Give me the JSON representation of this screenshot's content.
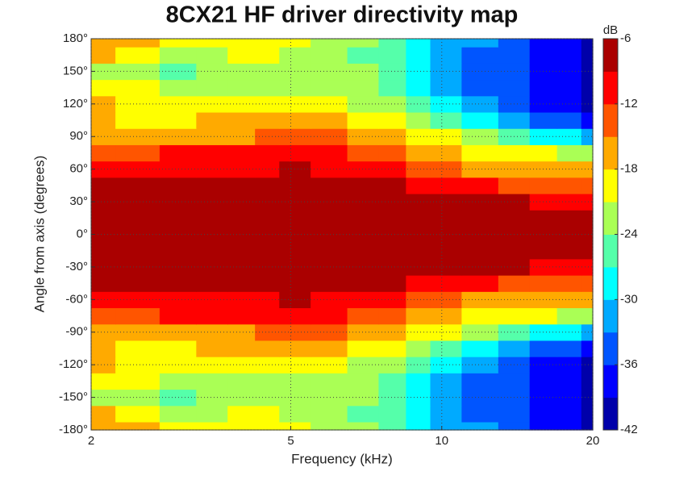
{
  "chart_data": {
    "type": "contour",
    "title": "8CX21 HF driver directivity map",
    "x_label": "Frequency (kHz)",
    "y_label": "Angle from axis (degrees)",
    "colorbar_label": "dB",
    "x_scale": "log",
    "grid": true,
    "x": [
      2,
      2.5,
      3,
      3.5,
      4,
      4.5,
      5,
      6,
      7,
      8,
      9,
      10,
      12,
      14,
      16,
      18,
      20
    ],
    "y": [
      -180,
      -165,
      -150,
      -135,
      -120,
      -105,
      -90,
      -75,
      -60,
      -45,
      -30,
      -15,
      0,
      15,
      30,
      45,
      60,
      75,
      90,
      105,
      120,
      135,
      150,
      165,
      180
    ],
    "z": [
      [
        -16,
        -17,
        -19,
        -20,
        -20,
        -20,
        -21,
        -22,
        -24,
        -25,
        -28,
        -31,
        -33,
        -36,
        -37,
        -39,
        -40
      ],
      [
        -18,
        -20,
        -22,
        -22,
        -21,
        -21,
        -22,
        -23,
        -25,
        -26,
        -29,
        -32,
        -34,
        -36,
        -37,
        -39,
        -40
      ],
      [
        -22,
        -24,
        -25,
        -23,
        -22,
        -22,
        -22,
        -23,
        -24,
        -27,
        -30,
        -33,
        -34,
        -35,
        -37,
        -38,
        -40
      ],
      [
        -20,
        -21,
        -22,
        -22,
        -22,
        -22,
        -22,
        -22,
        -23,
        -26,
        -28,
        -32,
        -34,
        -36,
        -38,
        -39,
        -40
      ],
      [
        -17,
        -20,
        -21,
        -21,
        -21,
        -21,
        -20,
        -21,
        -22,
        -24,
        -26,
        -28,
        -31,
        -34,
        -37,
        -39,
        -40
      ],
      [
        -18,
        -19,
        -19,
        -18,
        -18,
        -18,
        -17,
        -18,
        -19,
        -21,
        -23,
        -25,
        -28,
        -31,
        -34,
        -36,
        -37
      ],
      [
        -16,
        -17,
        -17,
        -16,
        -16,
        -15,
        -14,
        -15,
        -16,
        -17,
        -19,
        -21,
        -23,
        -25,
        -28,
        -30,
        -31
      ],
      [
        -14,
        -14,
        -12,
        -12,
        -12,
        -11,
        -11,
        -12,
        -13,
        -14,
        -16,
        -18,
        -19,
        -20,
        -21,
        -22,
        -22
      ],
      [
        -11,
        -11,
        -10,
        -10,
        -10,
        -10,
        -8,
        -10,
        -11,
        -12,
        -13,
        -15,
        -16,
        -17,
        -17,
        -17,
        -18
      ],
      [
        -9,
        -8,
        -7,
        -7,
        -7,
        -7,
        -7,
        -7,
        -8,
        -9,
        -10,
        -11,
        -12,
        -13,
        -13,
        -14,
        -14
      ],
      [
        -7,
        -7,
        -6,
        -6,
        -6,
        -6,
        -6,
        -6,
        -7,
        -7,
        -7,
        -8,
        -8,
        -9,
        -10,
        -11,
        -11
      ],
      [
        -6,
        -6,
        -6,
        -6,
        -6,
        -6,
        -6,
        -6,
        -6,
        -6,
        -6,
        -6,
        -6,
        -6,
        -6,
        -7,
        -7
      ],
      [
        -6,
        -6,
        -6,
        -6,
        -6,
        -6,
        -6,
        -6,
        -6,
        -6,
        -6,
        -6,
        -6,
        -6,
        -6,
        -6,
        -6
      ],
      [
        -6,
        -6,
        -6,
        -6,
        -6,
        -6,
        -6,
        -6,
        -6,
        -6,
        -6,
        -6,
        -6,
        -6,
        -6,
        -7,
        -7
      ],
      [
        -7,
        -7,
        -6,
        -6,
        -6,
        -6,
        -6,
        -6,
        -7,
        -7,
        -7,
        -8,
        -8,
        -9,
        -10,
        -11,
        -11
      ],
      [
        -9,
        -8,
        -7,
        -7,
        -7,
        -7,
        -7,
        -7,
        -8,
        -9,
        -10,
        -11,
        -12,
        -13,
        -13,
        -14,
        -14
      ],
      [
        -11,
        -11,
        -10,
        -10,
        -10,
        -10,
        -8,
        -10,
        -11,
        -12,
        -13,
        -15,
        -16,
        -17,
        -17,
        -17,
        -18
      ],
      [
        -14,
        -14,
        -12,
        -12,
        -12,
        -11,
        -11,
        -12,
        -13,
        -14,
        -16,
        -18,
        -19,
        -20,
        -21,
        -22,
        -22
      ],
      [
        -16,
        -17,
        -17,
        -16,
        -16,
        -15,
        -14,
        -15,
        -16,
        -17,
        -19,
        -21,
        -23,
        -25,
        -28,
        -30,
        -31
      ],
      [
        -18,
        -19,
        -19,
        -18,
        -18,
        -18,
        -17,
        -18,
        -19,
        -21,
        -23,
        -25,
        -28,
        -31,
        -34,
        -36,
        -37
      ],
      [
        -17,
        -20,
        -21,
        -21,
        -21,
        -21,
        -20,
        -21,
        -22,
        -24,
        -26,
        -28,
        -31,
        -34,
        -37,
        -39,
        -40
      ],
      [
        -20,
        -21,
        -22,
        -22,
        -22,
        -22,
        -22,
        -22,
        -23,
        -26,
        -28,
        -32,
        -34,
        -36,
        -38,
        -39,
        -40
      ],
      [
        -22,
        -24,
        -25,
        -23,
        -22,
        -22,
        -22,
        -23,
        -24,
        -27,
        -30,
        -33,
        -34,
        -35,
        -37,
        -38,
        -40
      ],
      [
        -18,
        -20,
        -22,
        -22,
        -21,
        -21,
        -22,
        -23,
        -25,
        -26,
        -29,
        -32,
        -34,
        -36,
        -37,
        -39,
        -40
      ],
      [
        -16,
        -17,
        -19,
        -20,
        -20,
        -20,
        -21,
        -22,
        -24,
        -25,
        -28,
        -31,
        -33,
        -36,
        -37,
        -39,
        -40
      ]
    ],
    "xlim": [
      2,
      20
    ],
    "xticks": [
      2,
      5,
      10,
      20
    ],
    "ylim": [
      -180,
      180
    ],
    "yticks": [
      {
        "value": -180,
        "label": "-180°"
      },
      {
        "value": -150,
        "label": "-150°"
      },
      {
        "value": -120,
        "label": "-120°"
      },
      {
        "value": -90,
        "label": "-90°"
      },
      {
        "value": -60,
        "label": "-60°"
      },
      {
        "value": -30,
        "label": "-30°"
      },
      {
        "value": 0,
        "label": "0°"
      },
      {
        "value": 30,
        "label": "30°"
      },
      {
        "value": 60,
        "label": "60°"
      },
      {
        "value": 90,
        "label": "90°"
      },
      {
        "value": 120,
        "label": "120°"
      },
      {
        "value": 150,
        "label": "150°"
      },
      {
        "value": 180,
        "label": "180°"
      }
    ],
    "clim": [
      -42,
      -6
    ],
    "cticks": [
      -42,
      -36,
      -30,
      -24,
      -18,
      -12,
      -6
    ],
    "levels": 12
  }
}
